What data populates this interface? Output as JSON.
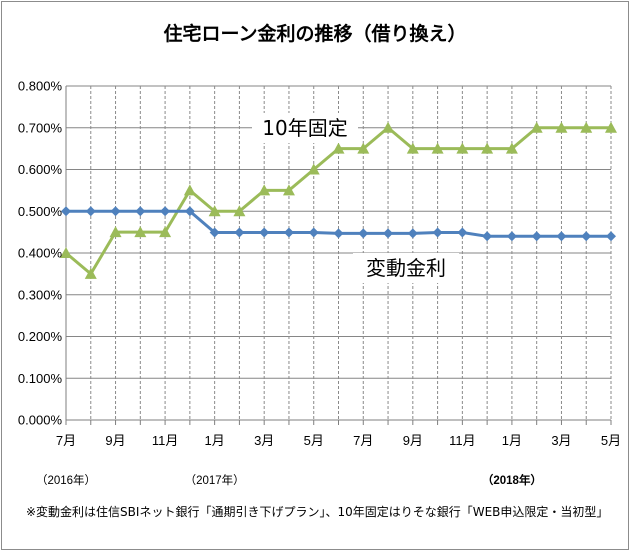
{
  "chart_data": {
    "type": "line",
    "title": "住宅ローン金利の推移（借り換え）",
    "categories": [
      "2016-07",
      "2016-08",
      "2016-09",
      "2016-10",
      "2016-11",
      "2016-12",
      "2017-01",
      "2017-02",
      "2017-03",
      "2017-04",
      "2017-05",
      "2017-06",
      "2017-07",
      "2017-08",
      "2017-09",
      "2017-10",
      "2017-11",
      "2017-12",
      "2018-01",
      "2018-02",
      "2018-03",
      "2018-04",
      "2018-05"
    ],
    "x_tick_labels": [
      "7月",
      "",
      "9月",
      "",
      "11月",
      "",
      "1月",
      "",
      "3月",
      "",
      "5月",
      "",
      "7月",
      "",
      "9月",
      "",
      "11月",
      "",
      "1月",
      "",
      "3月",
      "",
      "5月"
    ],
    "year_labels": [
      {
        "at": 0,
        "text": "（2016年）"
      },
      {
        "at": 6,
        "text": "（2017年）"
      },
      {
        "at": 18,
        "text": "（2018年）"
      }
    ],
    "y_tick_labels": [
      "0.000%",
      "0.100%",
      "0.200%",
      "0.300%",
      "0.400%",
      "0.500%",
      "0.600%",
      "0.700%",
      "0.800%"
    ],
    "ylim": [
      0,
      0.8
    ],
    "y_unit": "%",
    "grid": {
      "horizontal": true,
      "vertical_dashed": true
    },
    "series": [
      {
        "name": "10年固定",
        "color": "#9bbb59",
        "marker": "triangle",
        "values": [
          0.4,
          0.35,
          0.45,
          0.45,
          0.45,
          0.55,
          0.5,
          0.5,
          0.55,
          0.55,
          0.6,
          0.65,
          0.65,
          0.7,
          0.65,
          0.65,
          0.65,
          0.65,
          0.65,
          0.7,
          0.7,
          0.7,
          0.7
        ]
      },
      {
        "name": "変動金利",
        "color": "#4f81bd",
        "marker": "diamond",
        "values": [
          0.5,
          0.5,
          0.5,
          0.5,
          0.5,
          0.5,
          0.449,
          0.449,
          0.449,
          0.449,
          0.449,
          0.447,
          0.447,
          0.447,
          0.447,
          0.449,
          0.449,
          0.44,
          0.44,
          0.44,
          0.44,
          0.44,
          0.44
        ]
      }
    ]
  },
  "note": "※変動金利は住信SBIネット銀行「通期引き下げプラン」、10年固定はりそな銀行「WEB申込限定・当初型」"
}
